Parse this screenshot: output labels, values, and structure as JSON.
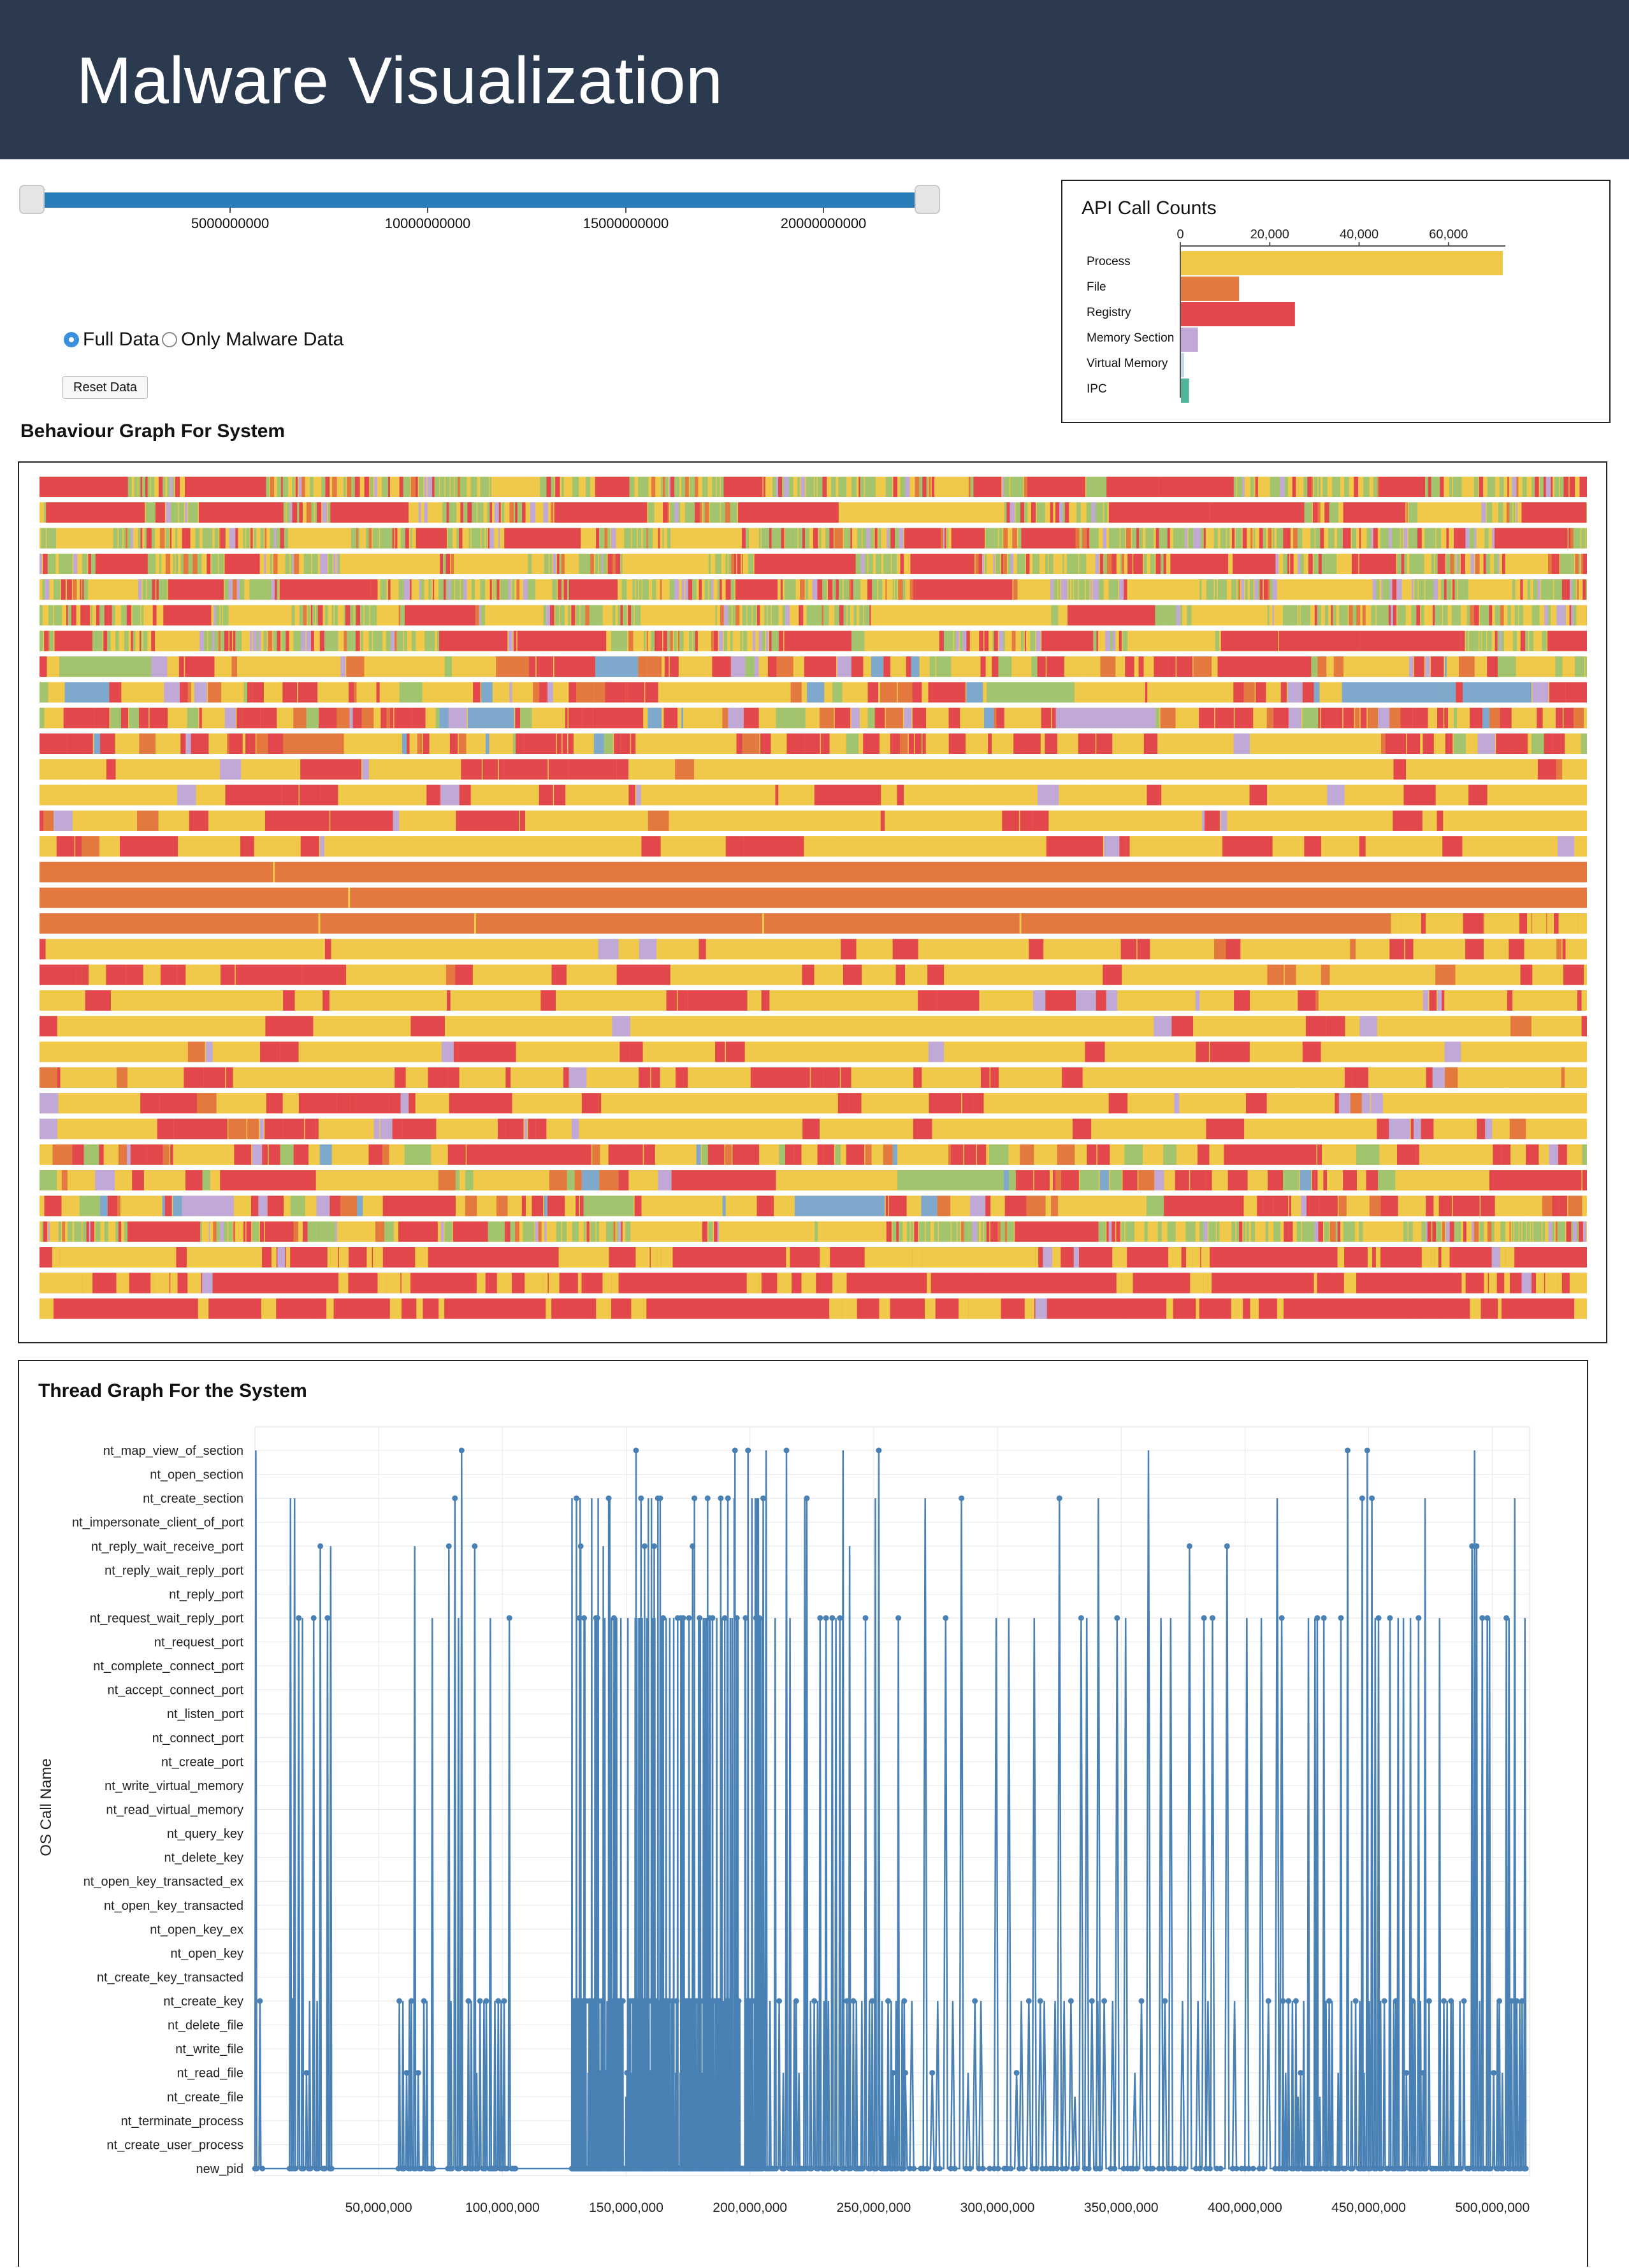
{
  "header": {
    "title": "Malware Visualization",
    "background": "#2c3a4f"
  },
  "slider": {
    "tick_labels": [
      "5000000000",
      "10000000000",
      "15000000000",
      "20000000000"
    ],
    "track_color": "#2a7db8"
  },
  "filters": {
    "full_data_label": "Full Data",
    "malware_only_label": "Only Malware Data",
    "selected": "Full Data",
    "reset_label": "Reset Data"
  },
  "api_counts": {
    "title": "API Call Counts",
    "axis_ticks": [
      "0",
      "20,000",
      "40,000",
      "60,000"
    ],
    "chart_data": {
      "type": "bar",
      "orientation": "horizontal",
      "categories": [
        "Process",
        "File",
        "Registry",
        "Memory Section",
        "Virtual Memory",
        "IPC"
      ],
      "values": [
        72000,
        13000,
        25500,
        3800,
        700,
        1800
      ],
      "colors": [
        "#f0c94a",
        "#e3793f",
        "#e2474b",
        "#c0a9d6",
        "#c5d9ea",
        "#4fb49a"
      ],
      "xlim": [
        0,
        72000
      ]
    }
  },
  "behaviour": {
    "title": "Behaviour Graph For System",
    "palette": {
      "process": "#f0c94a",
      "file": "#e3793f",
      "registry": "#e2474b",
      "memory_section": "#c0a9d6",
      "virtual_memory": "#7ea8cc",
      "ipc": "#4fb49a",
      "green": "#a3c46e"
    },
    "row_count": 33
  },
  "thread": {
    "title": "Thread Graph For the System",
    "ylabel": "OS Call Name",
    "line_color": "#4a81b5",
    "chart_data": {
      "type": "line",
      "categories": [
        "nt_map_view_of_section",
        "nt_open_section",
        "nt_create_section",
        "nt_impersonate_client_of_port",
        "nt_reply_wait_receive_port",
        "nt_reply_wait_reply_port",
        "nt_reply_port",
        "nt_request_wait_reply_port",
        "nt_request_port",
        "nt_complete_connect_port",
        "nt_accept_connect_port",
        "nt_listen_port",
        "nt_connect_port",
        "nt_create_port",
        "nt_write_virtual_memory",
        "nt_read_virtual_memory",
        "nt_query_key",
        "nt_delete_key",
        "nt_open_key_transacted_ex",
        "nt_open_key_transacted",
        "nt_open_key_ex",
        "nt_open_key",
        "nt_create_key_transacted",
        "nt_create_key",
        "nt_delete_file",
        "nt_write_file",
        "nt_read_file",
        "nt_create_file",
        "nt_terminate_process",
        "nt_create_user_process",
        "new_pid"
      ],
      "x_ticks": [
        "50,000,000",
        "100,000,000",
        "150,000,000",
        "200,000,000",
        "250,000,000",
        "300,000,000",
        "350,000,000",
        "400,000,000",
        "450,000,000",
        "500,000,000"
      ],
      "xlim": [
        0,
        515000000
      ],
      "grid": true
    }
  }
}
